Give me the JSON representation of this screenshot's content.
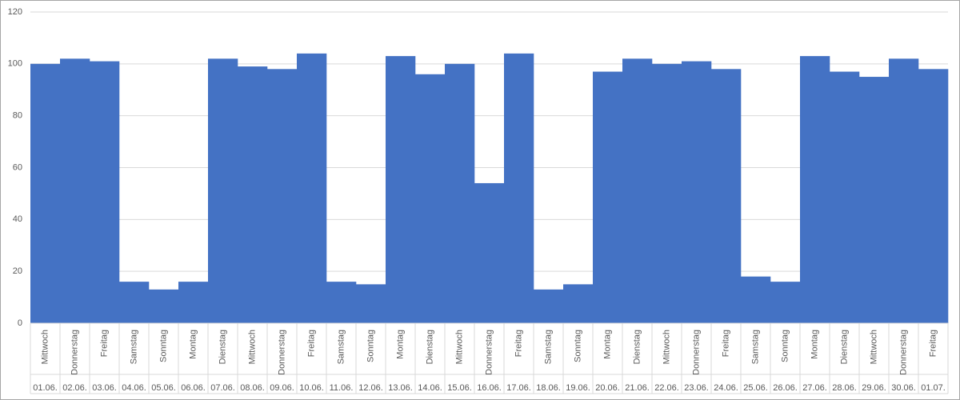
{
  "chart_data": {
    "type": "bar",
    "categories": [
      "01.06.",
      "02.06.",
      "03.06.",
      "04.06.",
      "05.06.",
      "06.06.",
      "07.06.",
      "08.06.",
      "09.06.",
      "10.06.",
      "11.06.",
      "12.06.",
      "13.06.",
      "14.06.",
      "15.06.",
      "16.06.",
      "17.06.",
      "18.06.",
      "19.06.",
      "20.06.",
      "21.06.",
      "22.06.",
      "23.06.",
      "24.06.",
      "25.06.",
      "26.06.",
      "27.06.",
      "28.06.",
      "29.06.",
      "30.06.",
      "01.07."
    ],
    "weekdays": [
      "Mittwoch",
      "Donnerstag",
      "Freitag",
      "Samstag",
      "Sonntag",
      "Montag",
      "Dienstag",
      "Mittwoch",
      "Donnerstag",
      "Freitag",
      "Samstag",
      "Sonntag",
      "Montag",
      "Dienstag",
      "Mittwoch",
      "Donnerstag",
      "Freitag",
      "Samstag",
      "Sonntag",
      "Montag",
      "Dienstag",
      "Mittwoch",
      "Donnerstag",
      "Freitag",
      "Samstag",
      "Sonntag",
      "Montag",
      "Dienstag",
      "Mittwoch",
      "Donnerstag",
      "Freitag"
    ],
    "values": [
      100,
      102,
      101,
      16,
      13,
      16,
      102,
      99,
      98,
      104,
      16,
      15,
      103,
      96,
      100,
      54,
      104,
      13,
      15,
      97,
      102,
      100,
      101,
      98,
      18,
      16,
      103,
      97,
      95,
      102,
      98
    ],
    "color": "#4472c4",
    "ylim": [
      0,
      120
    ],
    "yticks": [
      0,
      20,
      40,
      60,
      80,
      100,
      120
    ],
    "grid": true
  }
}
